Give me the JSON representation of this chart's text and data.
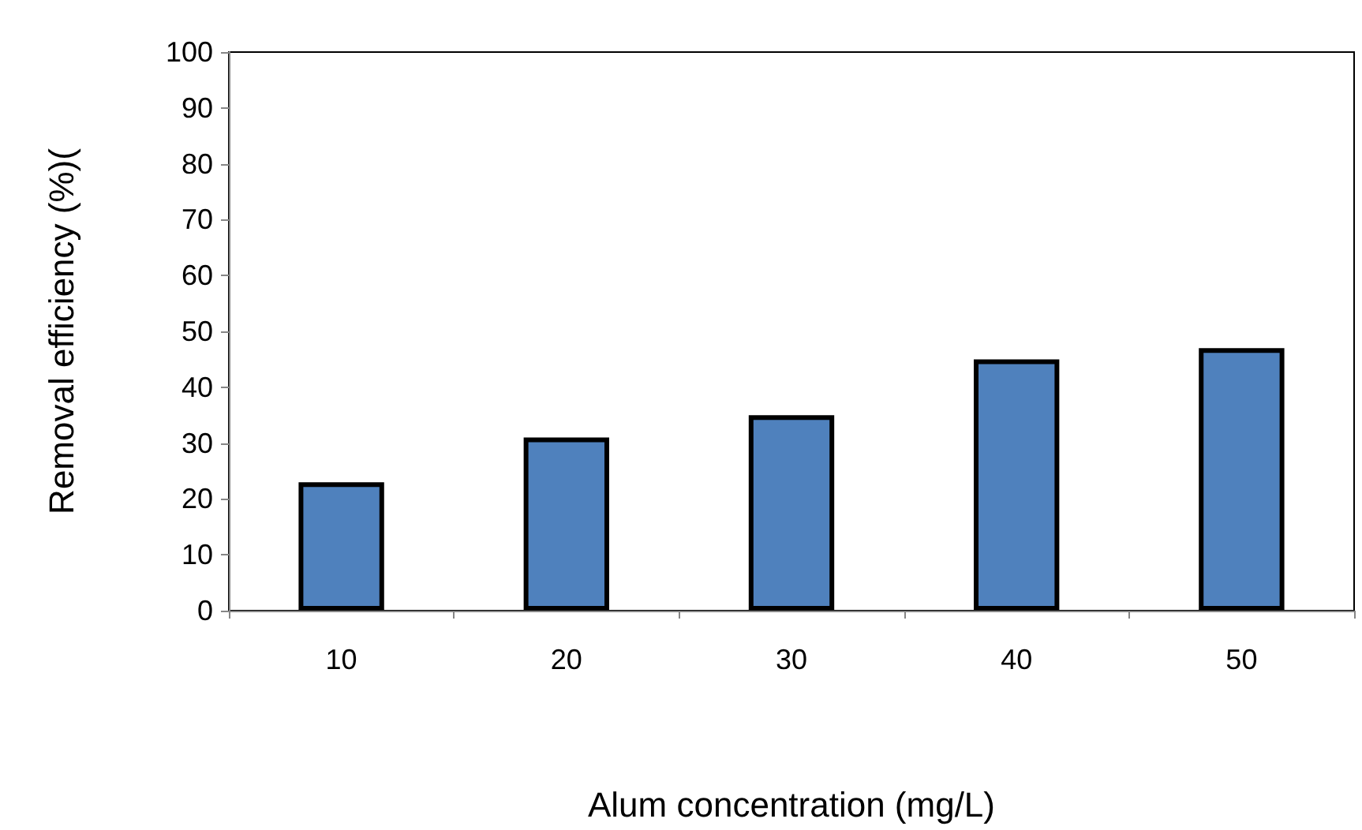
{
  "chart_data": {
    "type": "bar",
    "xlabel": "Alum concentration (mg/L)",
    "ylabel": "Removal efficiency (%)(",
    "categories": [
      "10",
      "20",
      "30",
      "40",
      "50"
    ],
    "values": [
      23,
      31,
      35,
      45,
      47
    ],
    "color": "#4f81bd",
    "ylim": [
      0,
      100
    ],
    "yticks": [
      0,
      10,
      20,
      30,
      40,
      50,
      60,
      70,
      80,
      90,
      100
    ],
    "grid": false
  }
}
